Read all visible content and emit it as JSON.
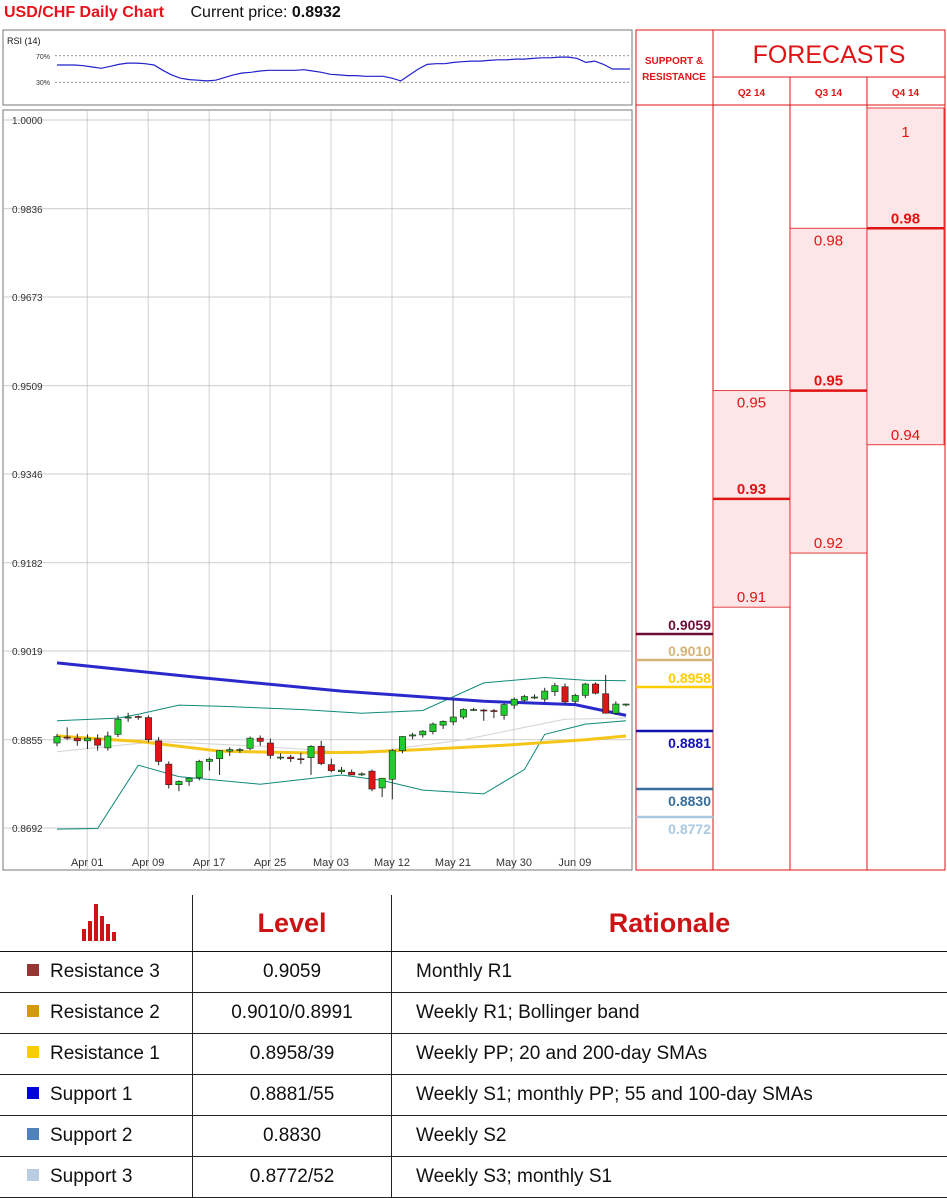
{
  "header": {
    "title": "USD/CHF Daily Chart",
    "price_label": "Current price:",
    "price_value": "0.8932"
  },
  "rsi": {
    "title": "RSI (14)",
    "levels": [
      "70%",
      "30%"
    ],
    "level_values": [
      70,
      30
    ],
    "values": [
      56,
      56,
      56,
      55,
      53,
      51,
      54,
      57,
      59,
      59,
      58,
      56,
      48,
      41,
      36,
      34,
      33,
      32,
      33,
      37,
      41,
      44,
      45,
      47,
      48,
      48,
      48,
      48,
      49,
      47,
      45,
      42,
      41,
      40,
      40,
      39,
      39,
      39,
      36,
      32,
      41,
      50,
      57,
      58,
      58,
      60,
      61,
      62,
      62,
      63,
      64,
      64,
      65,
      65,
      66,
      67,
      67,
      68,
      68,
      66,
      60,
      62,
      57,
      50,
      50,
      50
    ]
  },
  "chart_data": {
    "type": "candlestick",
    "title": "USD/CHF Daily Chart",
    "ylim": [
      0.8692,
      1.0
    ],
    "y_ticks": [
      "1.0000",
      "0.9836",
      "0.9673",
      "0.9509",
      "0.9346",
      "0.9182",
      "0.9019",
      "0.8855",
      "0.8692"
    ],
    "x_ticks": [
      {
        "label": "Apr 01",
        "i": 1
      },
      {
        "label": "Apr 09",
        "i": 7
      },
      {
        "label": "Apr 17",
        "i": 13
      },
      {
        "label": "Apr 25",
        "i": 19
      },
      {
        "label": "May 03",
        "i": 25
      },
      {
        "label": "May 12",
        "i": 31
      },
      {
        "label": "May 21",
        "i": 37
      },
      {
        "label": "May 30",
        "i": 43
      },
      {
        "label": "Jun 09",
        "i": 49
      }
    ],
    "candles": [
      [
        0.8849,
        0.8866,
        0.8843,
        0.8861
      ],
      [
        0.886,
        0.8878,
        0.8855,
        0.8858
      ],
      [
        0.8858,
        0.8866,
        0.8844,
        0.8853
      ],
      [
        0.8853,
        0.8865,
        0.8838,
        0.8858
      ],
      [
        0.8857,
        0.8865,
        0.8835,
        0.8845
      ],
      [
        0.884,
        0.887,
        0.8835,
        0.8862
      ],
      [
        0.8865,
        0.89,
        0.886,
        0.8893
      ],
      [
        0.8895,
        0.8905,
        0.8888,
        0.8897
      ],
      [
        0.8898,
        0.89,
        0.8892,
        0.8897
      ],
      [
        0.8896,
        0.89,
        0.885,
        0.8855
      ],
      [
        0.8853,
        0.886,
        0.8808,
        0.8815
      ],
      [
        0.881,
        0.8815,
        0.8765,
        0.8772
      ],
      [
        0.8772,
        0.878,
        0.876,
        0.8778
      ],
      [
        0.8778,
        0.8785,
        0.877,
        0.8784
      ],
      [
        0.8785,
        0.8818,
        0.878,
        0.8815
      ],
      [
        0.8815,
        0.8822,
        0.8798,
        0.8819
      ],
      [
        0.882,
        0.8836,
        0.879,
        0.8835
      ],
      [
        0.8834,
        0.8841,
        0.8825,
        0.8837
      ],
      [
        0.8837,
        0.884,
        0.8831,
        0.8837
      ],
      [
        0.8839,
        0.8861,
        0.8836,
        0.8858
      ],
      [
        0.8858,
        0.8863,
        0.8844,
        0.8852
      ],
      [
        0.8849,
        0.8857,
        0.882,
        0.8826
      ],
      [
        0.8822,
        0.883,
        0.8818,
        0.8823
      ],
      [
        0.8823,
        0.8827,
        0.8814,
        0.882
      ],
      [
        0.882,
        0.8831,
        0.881,
        0.8819
      ],
      [
        0.8822,
        0.8845,
        0.879,
        0.8843
      ],
      [
        0.8843,
        0.8853,
        0.8808,
        0.8811
      ],
      [
        0.8809,
        0.882,
        0.8795,
        0.8798
      ],
      [
        0.8796,
        0.8805,
        0.8792,
        0.8799
      ],
      [
        0.8795,
        0.88,
        0.879,
        0.879
      ],
      [
        0.8792,
        0.8795,
        0.8788,
        0.8792
      ],
      [
        0.8797,
        0.88,
        0.876,
        0.8764
      ],
      [
        0.8766,
        0.8772,
        0.8749,
        0.8784
      ],
      [
        0.8782,
        0.8838,
        0.8745,
        0.8835
      ],
      [
        0.8835,
        0.8862,
        0.883,
        0.8861
      ],
      [
        0.8862,
        0.8868,
        0.8856,
        0.8864
      ],
      [
        0.8864,
        0.8873,
        0.8859,
        0.8871
      ],
      [
        0.887,
        0.8887,
        0.8865,
        0.8884
      ],
      [
        0.8882,
        0.8891,
        0.8875,
        0.8889
      ],
      [
        0.8888,
        0.893,
        0.8882,
        0.8897
      ],
      [
        0.8897,
        0.8913,
        0.8893,
        0.8911
      ],
      [
        0.8911,
        0.8914,
        0.8908,
        0.8911
      ],
      [
        0.891,
        0.8912,
        0.889,
        0.8909
      ],
      [
        0.8909,
        0.8912,
        0.8895,
        0.8908
      ],
      [
        0.89,
        0.8922,
        0.8892,
        0.892
      ],
      [
        0.8919,
        0.8933,
        0.8912,
        0.893
      ],
      [
        0.8928,
        0.8938,
        0.8925,
        0.8935
      ],
      [
        0.8934,
        0.8939,
        0.893,
        0.8934
      ],
      [
        0.893,
        0.8951,
        0.8925,
        0.8945
      ],
      [
        0.8944,
        0.896,
        0.8936,
        0.8955
      ],
      [
        0.8953,
        0.8959,
        0.892,
        0.8925
      ],
      [
        0.8926,
        0.894,
        0.8921,
        0.8937
      ],
      [
        0.8937,
        0.896,
        0.8932,
        0.8958
      ],
      [
        0.8958,
        0.8961,
        0.8939,
        0.8941
      ],
      [
        0.894,
        0.8975,
        0.891,
        0.8904
      ],
      [
        0.8904,
        0.8926,
        0.8901,
        0.8921
      ],
      [
        0.892,
        0.8922,
        0.8917,
        0.8921
      ]
    ],
    "sma_blue": [
      [
        0,
        0.8997
      ],
      [
        14,
        0.897
      ],
      [
        28,
        0.8945
      ],
      [
        42,
        0.8926
      ],
      [
        51,
        0.892
      ],
      [
        56,
        0.89
      ]
    ],
    "sma_yellow": [
      [
        0,
        0.8862
      ],
      [
        8,
        0.8852
      ],
      [
        16,
        0.8834
      ],
      [
        24,
        0.8831
      ],
      [
        30,
        0.8832
      ],
      [
        36,
        0.8837
      ],
      [
        44,
        0.8845
      ],
      [
        52,
        0.8855
      ],
      [
        56,
        0.8862
      ]
    ],
    "sma_gray": [
      [
        0,
        0.8833
      ],
      [
        10,
        0.8852
      ],
      [
        20,
        0.8843
      ],
      [
        30,
        0.883
      ],
      [
        40,
        0.8855
      ],
      [
        50,
        0.8893
      ],
      [
        56,
        0.8895
      ]
    ],
    "boll_upper": [
      [
        0,
        0.889
      ],
      [
        6,
        0.8895
      ],
      [
        8,
        0.8902
      ],
      [
        12,
        0.8919
      ],
      [
        16,
        0.8917
      ],
      [
        24,
        0.8911
      ],
      [
        30,
        0.8904
      ],
      [
        36,
        0.8909
      ],
      [
        42,
        0.896
      ],
      [
        48,
        0.897
      ],
      [
        52,
        0.8965
      ],
      [
        56,
        0.8964
      ]
    ],
    "boll_lower": [
      [
        0,
        0.869
      ],
      [
        4,
        0.8691
      ],
      [
        8,
        0.8808
      ],
      [
        12,
        0.8787
      ],
      [
        20,
        0.8773
      ],
      [
        28,
        0.879
      ],
      [
        32,
        0.878
      ],
      [
        36,
        0.8762
      ],
      [
        42,
        0.8755
      ],
      [
        46,
        0.88
      ],
      [
        48,
        0.8865
      ],
      [
        52,
        0.8884
      ],
      [
        56,
        0.889
      ]
    ],
    "sr_levels": [
      {
        "label": "0.9059",
        "value": 0.9059,
        "color": "#6b0f3a"
      },
      {
        "label": "0.9010",
        "value": 0.901,
        "color": "#d4b37a"
      },
      {
        "label": "0.8958",
        "value": 0.8958,
        "color": "#ffcc00"
      },
      {
        "label": "0.8881",
        "value": 0.8881,
        "color": "#1212b0"
      },
      {
        "label": "0.8830",
        "value": 0.883,
        "color": "#3a6e9a"
      },
      {
        "label": "0.8772",
        "value": 0.8772,
        "color": "#aac8e0"
      }
    ],
    "forecast_columns": [
      {
        "quarter": "Q2 14",
        "high": 0.95,
        "high_label": "0.95",
        "mid": 0.93,
        "mid_label": "0.93",
        "low": 0.91,
        "low_label": "0.91"
      },
      {
        "quarter": "Q3 14",
        "high": 0.98,
        "high_label": "0.98",
        "mid": 0.95,
        "mid_label": "0.95",
        "low": 0.92,
        "low_label": "0.92"
      },
      {
        "quarter": "Q4 14",
        "high": 1.0,
        "high_label": "1",
        "mid": 0.98,
        "mid_label": "0.98",
        "low": 0.94,
        "low_label": "0.94"
      }
    ],
    "colors": {
      "up": "#1fcc2a",
      "down": "#e01414",
      "forecast": "#e01414"
    }
  },
  "forecast_panel": {
    "sr_heading_line1": "SUPPORT &",
    "sr_heading_line2": "RESISTANCE",
    "title": "FORECASTS"
  },
  "table": {
    "headers": [
      "Level",
      "Rationale"
    ],
    "rows": [
      {
        "name": "Resistance 3",
        "value": "0.9059",
        "rationale": "Monthly R1",
        "color": "#943634"
      },
      {
        "name": "Resistance 2",
        "value": "0.9010/0.8991",
        "rationale": "Weekly R1; Bollinger band",
        "color": "#d49a0a"
      },
      {
        "name": "Resistance 1",
        "value": "0.8958/39",
        "rationale": "Weekly PP; 20 and 200-day SMAs",
        "color": "#ffcc00"
      },
      {
        "name": "Support 1",
        "value": "0.8881/55",
        "rationale": "Weekly S1; monthly PP; 55 and 100-day SMAs",
        "color": "#0000e0"
      },
      {
        "name": "Support 2",
        "value": "0.8830",
        "rationale": "Weekly S2",
        "color": "#4f81bd"
      },
      {
        "name": "Support 3",
        "value": "0.8772/52",
        "rationale": "Weekly S3; monthly S1",
        "color": "#b8cce4"
      }
    ]
  }
}
